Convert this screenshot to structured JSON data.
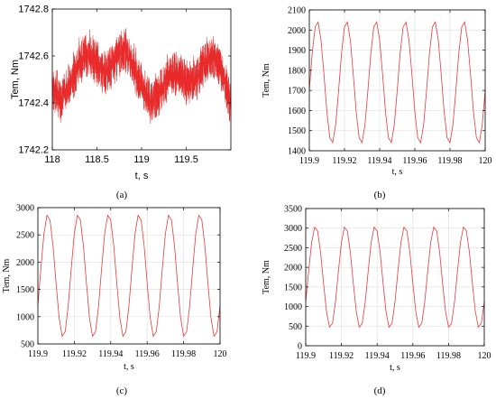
{
  "chart_data": [
    {
      "id": "a",
      "panel_label": "(a)",
      "type": "line",
      "xlabel": "t, s",
      "ylabel": "Tem, Nm",
      "xlim": [
        118,
        120
      ],
      "ylim": [
        1742.2,
        1742.8
      ],
      "xticks": [
        118,
        118.5,
        119,
        119.5
      ],
      "xtick_labels": [
        "118",
        "118.5",
        "119",
        "119.5"
      ],
      "yticks": [
        1742.2,
        1742.4,
        1742.6,
        1742.8
      ],
      "ytick_labels": [
        "1742.2",
        "1742.4",
        "1742.6",
        "1742.8"
      ],
      "grid": false,
      "colors": {
        "red": "#ff2020",
        "dark": "#404040"
      },
      "series": [
        {
          "x": [
            118.0,
            118.1,
            118.2,
            118.3,
            118.4,
            118.5,
            118.6,
            118.7,
            118.8,
            118.9,
            119.0,
            119.1,
            119.2,
            119.3,
            119.4,
            119.5,
            119.6,
            119.7,
            119.8,
            119.9,
            120.0
          ],
          "y": [
            1742.47,
            1742.42,
            1742.48,
            1742.58,
            1742.61,
            1742.57,
            1742.52,
            1742.58,
            1742.64,
            1742.56,
            1742.47,
            1742.4,
            1742.45,
            1742.51,
            1742.53,
            1742.49,
            1742.5,
            1742.57,
            1742.6,
            1742.53,
            1742.4
          ],
          "ripple": 0.13,
          "ripple_cycles": 190
        }
      ]
    },
    {
      "id": "b",
      "panel_label": "(b)",
      "type": "line",
      "xlabel": "t, s",
      "ylabel": "Tem, Nm",
      "xlim": [
        119.9,
        120
      ],
      "ylim": [
        1400,
        2100
      ],
      "xticks": [
        119.9,
        119.92,
        119.94,
        119.96,
        119.98,
        120
      ],
      "xtick_labels": [
        "119.9",
        "119.92",
        "119.94",
        "119.96",
        "119.98",
        "120"
      ],
      "yticks": [
        1400,
        1500,
        1600,
        1700,
        1800,
        1900,
        2000,
        2100
      ],
      "ytick_labels": [
        "1400",
        "1500",
        "1600",
        "1700",
        "1800",
        "1900",
        "2000",
        "2100"
      ],
      "grid": true,
      "colors": {
        "line": "#e83a3a",
        "grid": "#e2e2e2"
      },
      "wave": {
        "mean": 1740,
        "amp": 305,
        "period": 0.01667,
        "phase_x": 119.9045,
        "samples": 60
      }
    },
    {
      "id": "c",
      "panel_label": "(c)",
      "type": "line",
      "xlabel": "t, s",
      "ylabel": "Tem, Nm",
      "xlim": [
        119.9,
        120
      ],
      "ylim": [
        500,
        3000
      ],
      "xticks": [
        119.9,
        119.92,
        119.94,
        119.96,
        119.98,
        120
      ],
      "xtick_labels": [
        "119.9",
        "119.92",
        "119.94",
        "119.96",
        "119.98",
        "120"
      ],
      "yticks": [
        500,
        1000,
        1500,
        2000,
        2500,
        3000
      ],
      "ytick_labels": [
        "500",
        "1000",
        "1500",
        "2000",
        "2500",
        "3000"
      ],
      "grid": true,
      "colors": {
        "line": "#e83a3a",
        "grid": "#e2e2e2"
      },
      "wave": {
        "mean": 1750,
        "amp": 1130,
        "period": 0.01667,
        "phase_x": 119.9055,
        "samples": 60
      }
    },
    {
      "id": "d",
      "panel_label": "(d)",
      "type": "line",
      "xlabel": "t, s",
      "ylabel": "Tem, Nm",
      "xlim": [
        119.9,
        120
      ],
      "ylim": [
        0,
        3500
      ],
      "xticks": [
        119.9,
        119.92,
        119.94,
        119.96,
        119.98,
        120
      ],
      "xtick_labels": [
        "119.9",
        "119.92",
        "119.94",
        "119.96",
        "119.98",
        "120"
      ],
      "yticks": [
        0,
        500,
        1000,
        1500,
        2000,
        2500,
        3000,
        3500
      ],
      "ytick_labels": [
        "0",
        "500",
        "1000",
        "1500",
        "2000",
        "2500",
        "3000",
        "3500"
      ],
      "grid": true,
      "colors": {
        "line": "#e83a3a",
        "grid": "#e2e2e2"
      },
      "wave": {
        "mean": 1750,
        "amp": 1300,
        "period": 0.01667,
        "phase_x": 119.9055,
        "samples": 60
      }
    }
  ]
}
